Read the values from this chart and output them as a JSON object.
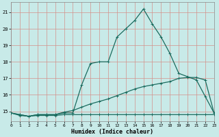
{
  "xlabel": "Humidex (Indice chaleur)",
  "xlim": [
    0,
    23
  ],
  "ylim": [
    14.4,
    21.6
  ],
  "yticks": [
    15,
    16,
    17,
    18,
    19,
    20,
    21
  ],
  "xticks": [
    0,
    1,
    2,
    3,
    4,
    5,
    6,
    7,
    8,
    9,
    10,
    11,
    12,
    13,
    14,
    15,
    16,
    17,
    18,
    19,
    20,
    21,
    22,
    23
  ],
  "bg_color": "#c8eae8",
  "grid_color": "#d4908a",
  "line_color": "#1a6b5e",
  "line1_y": [
    14.9,
    14.8,
    14.7,
    14.8,
    14.8,
    14.8,
    14.9,
    14.9,
    16.6,
    17.9,
    18.0,
    18.0,
    19.5,
    20.0,
    20.5,
    21.2,
    20.3,
    19.5,
    18.5,
    17.3,
    17.1,
    16.9,
    15.9,
    14.9
  ],
  "line2_y": [
    14.9,
    14.8,
    14.7,
    14.8,
    14.8,
    14.8,
    14.95,
    15.05,
    15.25,
    15.45,
    15.6,
    15.75,
    15.95,
    16.15,
    16.35,
    16.5,
    16.6,
    16.7,
    16.8,
    17.0,
    17.05,
    17.05,
    16.9,
    14.9
  ],
  "line3_y": [
    14.9,
    14.75,
    14.7,
    14.75,
    14.75,
    14.75,
    14.8,
    14.8,
    14.8,
    14.8,
    14.8,
    14.8,
    14.8,
    14.8,
    14.8,
    14.8,
    14.8,
    14.8,
    14.8,
    14.8,
    14.8,
    14.8,
    14.8,
    14.8
  ]
}
